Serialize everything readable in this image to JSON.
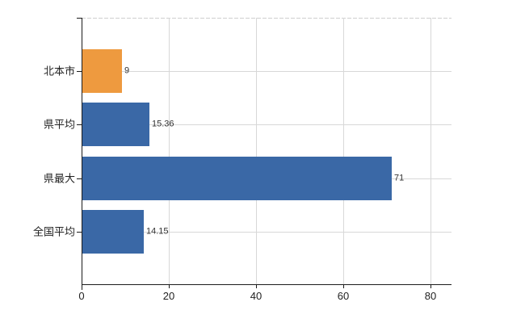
{
  "chart_data": {
    "type": "bar",
    "orientation": "horizontal",
    "title": "",
    "xlabel": "",
    "ylabel": "",
    "categories": [
      "北本市",
      "県平均",
      "県最大",
      "全国平均"
    ],
    "values": [
      9,
      15.36,
      71,
      14.15
    ],
    "value_labels": [
      "9",
      "15.36",
      "71",
      "14.15"
    ],
    "bar_colors": [
      "#ee9a3f",
      "#3a68a6",
      "#3a68a6",
      "#3a68a6"
    ],
    "x_ticks": [
      "0",
      "20",
      "40",
      "60",
      "80"
    ],
    "x_tick_values": [
      0,
      20,
      40,
      60,
      80
    ],
    "xlim": [
      0,
      84.8
    ],
    "grid": true,
    "legend_position": "none",
    "colors": {
      "background": "#ffffff",
      "gridline": "#d8d8d8",
      "plot_border_dashed": "#cfcfcf",
      "axis": "#1c1c1c",
      "tick_label": "#222222",
      "value_label": "#333333",
      "highlight_bar": "#ee9a3f",
      "default_bar": "#3a68a6"
    }
  }
}
